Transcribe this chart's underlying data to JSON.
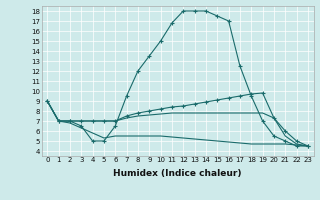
{
  "xlabel": "Humidex (Indice chaleur)",
  "ylabel": "",
  "background_color": "#ceeaea",
  "line_color": "#1a6b6b",
  "xlim": [
    -0.5,
    23.5
  ],
  "ylim": [
    3.5,
    18.5
  ],
  "xticks": [
    0,
    1,
    2,
    3,
    4,
    5,
    6,
    7,
    8,
    9,
    10,
    11,
    12,
    13,
    14,
    15,
    16,
    17,
    18,
    19,
    20,
    21,
    22,
    23
  ],
  "yticks": [
    4,
    5,
    6,
    7,
    8,
    9,
    10,
    11,
    12,
    13,
    14,
    15,
    16,
    17,
    18
  ],
  "lines": [
    {
      "x": [
        0,
        1,
        2,
        3,
        4,
        5,
        6,
        7,
        8,
        9,
        10,
        11,
        12,
        13,
        14,
        15,
        16,
        17,
        18,
        19,
        20,
        21,
        22,
        23
      ],
      "y": [
        9,
        7,
        7,
        6.5,
        5,
        5,
        6.5,
        9.5,
        12,
        13.5,
        15,
        16.8,
        18,
        18,
        18,
        17.5,
        17,
        12.5,
        9.5,
        7,
        5.5,
        5,
        4.5,
        4.5
      ],
      "marker": "+"
    },
    {
      "x": [
        0,
        1,
        2,
        3,
        4,
        5,
        6,
        7,
        8,
        9,
        10,
        11,
        12,
        13,
        14,
        15,
        16,
        17,
        18,
        19,
        20,
        21,
        22,
        23
      ],
      "y": [
        9,
        7,
        7,
        7,
        7,
        7,
        7,
        7.5,
        7.8,
        8,
        8.2,
        8.4,
        8.5,
        8.7,
        8.9,
        9.1,
        9.3,
        9.5,
        9.7,
        9.8,
        7.3,
        6,
        5,
        4.5
      ],
      "marker": "+"
    },
    {
      "x": [
        0,
        1,
        2,
        3,
        4,
        5,
        6,
        7,
        8,
        9,
        10,
        11,
        12,
        13,
        14,
        15,
        16,
        17,
        18,
        19,
        20,
        21,
        22,
        23
      ],
      "y": [
        9,
        7,
        7,
        7,
        7,
        7,
        7,
        7.3,
        7.5,
        7.6,
        7.7,
        7.8,
        7.8,
        7.8,
        7.8,
        7.8,
        7.8,
        7.8,
        7.8,
        7.8,
        7.3,
        5.5,
        4.7,
        4.5
      ],
      "marker": null
    },
    {
      "x": [
        0,
        1,
        2,
        3,
        4,
        5,
        6,
        7,
        8,
        9,
        10,
        11,
        12,
        13,
        14,
        15,
        16,
        17,
        18,
        19,
        20,
        21,
        22,
        23
      ],
      "y": [
        9,
        7,
        6.8,
        6.3,
        5.8,
        5.3,
        5.5,
        5.5,
        5.5,
        5.5,
        5.5,
        5.4,
        5.3,
        5.2,
        5.1,
        5.0,
        4.9,
        4.8,
        4.7,
        4.7,
        4.7,
        4.7,
        4.6,
        4.5
      ],
      "marker": null
    }
  ]
}
